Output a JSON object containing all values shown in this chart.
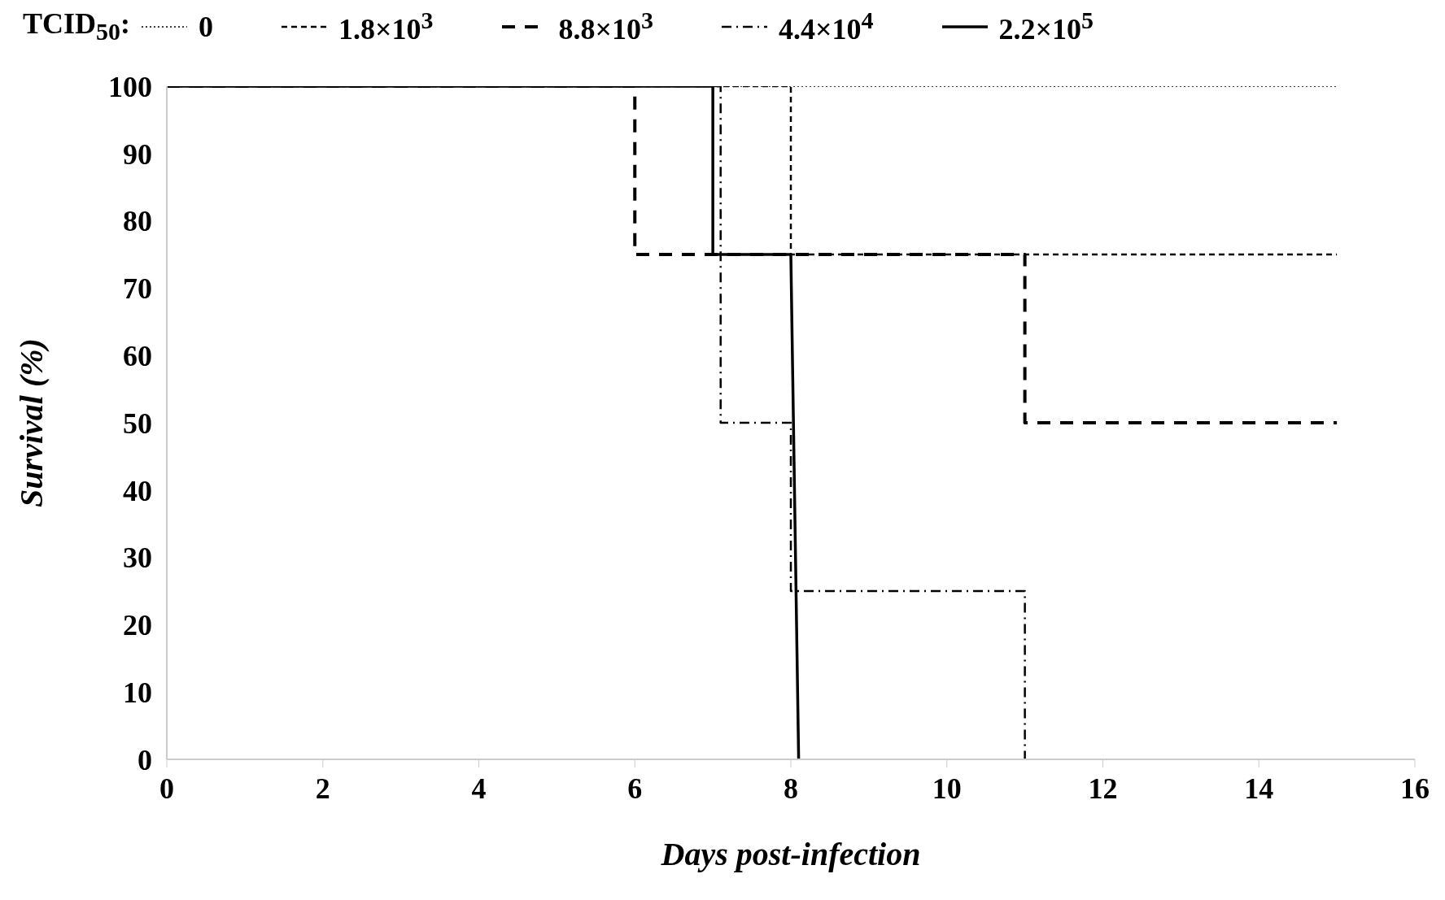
{
  "chart_data": {
    "type": "line",
    "xlabel": "Days post-infection",
    "ylabel": "Survival (%)",
    "legend_title": "TCID$_{50}$:",
    "legend": "top",
    "grid": false,
    "marker": "none",
    "xlim": [
      0,
      16
    ],
    "xticks": [
      0,
      2,
      4,
      6,
      8,
      10,
      12,
      14,
      16
    ],
    "ylim": [
      0,
      100
    ],
    "yticks": [
      0,
      10,
      20,
      30,
      40,
      50,
      60,
      70,
      80,
      90,
      100
    ],
    "series": [
      {
        "name": "0",
        "color": "#000000",
        "line_style": "dotted",
        "x": [
          0,
          15
        ],
        "values": [
          100,
          100
        ]
      },
      {
        "name": "1.8×10$^{3}$",
        "color": "#000000",
        "line_style": "dashed",
        "x": [
          0,
          8,
          8,
          15
        ],
        "values": [
          100,
          100,
          75,
          75
        ]
      },
      {
        "name": "8.8×10$^{3}$",
        "color": "#000000",
        "line_style": "longdashed",
        "x": [
          0,
          6,
          6,
          11,
          11,
          15
        ],
        "values": [
          100,
          100,
          75,
          75,
          50,
          50
        ]
      },
      {
        "name": "4.4×10$^{4}$",
        "color": "#000000",
        "line_style": "dashdot",
        "x": [
          0,
          7.1,
          7.1,
          8,
          8,
          11,
          11
        ],
        "values": [
          100,
          100,
          50,
          50,
          25,
          25,
          0
        ]
      },
      {
        "name": "2.2×10$^{5}$",
        "color": "#000000",
        "line_style": "solid",
        "x": [
          0,
          7,
          7,
          8,
          8.1
        ],
        "values": [
          100,
          100,
          75,
          75,
          0
        ]
      }
    ]
  }
}
